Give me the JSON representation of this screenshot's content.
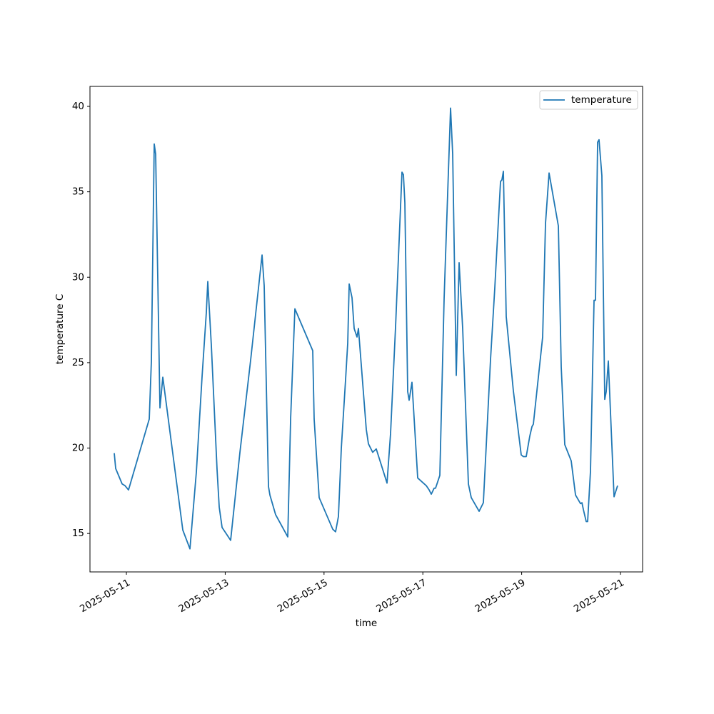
{
  "chart_data": {
    "type": "line",
    "x_label": "time",
    "y_label": "temperature C",
    "x": [
      "2025-05-10T18:06",
      "2025-05-10T18:48",
      "2025-05-10T21:55",
      "2025-05-10T23:19",
      "2025-05-11T01:02",
      "2025-05-11T11:06",
      "2025-05-11T12:08",
      "2025-05-11T13:31",
      "2025-05-11T14:13",
      "2025-05-11T16:18",
      "2025-05-11T17:41",
      "2025-05-12T03:24",
      "2025-05-12T06:52",
      "2025-05-12T09:59",
      "2025-05-12T12:46",
      "2025-05-12T14:50",
      "2025-05-12T15:32",
      "2025-05-12T17:16",
      "2025-05-12T20:02",
      "2025-05-12T21:05",
      "2025-05-12T22:29",
      "2025-05-13T02:38",
      "2025-05-13T07:09",
      "2025-05-13T12:21",
      "2025-05-13T17:54",
      "2025-05-13T18:56",
      "2025-05-13T21:01",
      "2025-05-13T21:43",
      "2025-05-14T00:29",
      "2025-05-14T06:23",
      "2025-05-14T07:47",
      "2025-05-14T09:51",
      "2025-05-14T18:31",
      "2025-05-14T19:12",
      "2025-05-14T20:36",
      "2025-05-14T21:38",
      "2025-05-15T04:14",
      "2025-05-15T05:37",
      "2025-05-15T07:00",
      "2025-05-15T08:24",
      "2025-05-15T10:28",
      "2025-05-15T11:31",
      "2025-05-15T12:13",
      "2025-05-15T13:36",
      "2025-05-15T14:38",
      "2025-05-15T16:01",
      "2025-05-15T16:43",
      "2025-05-15T20:31",
      "2025-05-15T21:34",
      "2025-05-15T23:38",
      "2025-05-16T01:22",
      "2025-05-16T06:36",
      "2025-05-16T08:19",
      "2025-05-16T10:45",
      "2025-05-16T13:52",
      "2025-05-16T14:34",
      "2025-05-16T15:16",
      "2025-05-16T16:39",
      "2025-05-16T17:21",
      "2025-05-16T18:43",
      "2025-05-16T21:30",
      "2025-05-17T01:39",
      "2025-05-17T03:03",
      "2025-05-17T04:06",
      "2025-05-17T05:29",
      "2025-05-17T06:10",
      "2025-05-17T08:15",
      "2025-05-17T10:20",
      "2025-05-17T13:28",
      "2025-05-17T14:30",
      "2025-05-17T16:14",
      "2025-05-17T17:37",
      "2025-05-17T19:21",
      "2025-05-17T22:08",
      "2025-05-17T23:31",
      "2025-05-18T03:20",
      "2025-05-18T05:24",
      "2025-05-18T07:09",
      "2025-05-18T08:53",
      "2025-05-18T10:58",
      "2025-05-18T13:44",
      "2025-05-18T14:25",
      "2025-05-18T15:07",
      "2025-05-18T16:30",
      "2025-05-18T19:58",
      "2025-05-18T23:47",
      "2025-05-19T00:50",
      "2025-05-19T02:13",
      "2025-05-19T03:57",
      "2025-05-19T05:00",
      "2025-05-19T05:41",
      "2025-05-19T10:12",
      "2025-05-19T11:35",
      "2025-05-19T13:19",
      "2025-05-19T17:50",
      "2025-05-19T19:13",
      "2025-05-19T20:57",
      "2025-05-20T00:04",
      "2025-05-20T02:10",
      "2025-05-20T04:35",
      "2025-05-20T05:17",
      "2025-05-20T05:59",
      "2025-05-20T07:21",
      "2025-05-20T08:03",
      "2025-05-20T09:26",
      "2025-05-20T11:10",
      "2025-05-20T11:52",
      "2025-05-20T12:54",
      "2025-05-20T13:35",
      "2025-05-20T14:58",
      "2025-05-20T16:22",
      "2025-05-20T17:04",
      "2025-05-20T18:06",
      "2025-05-20T20:53",
      "2025-05-20T22:36"
    ],
    "series": [
      {
        "name": "temperature",
        "color": "#1f77b4",
        "values": [
          19.7,
          18.8,
          17.9,
          17.8,
          17.55,
          21.7,
          25.1,
          37.8,
          37.2,
          22.35,
          24.15,
          15.2,
          14.1,
          18.6,
          24.2,
          27.95,
          29.75,
          26.0,
          18.75,
          16.55,
          15.35,
          14.6,
          19.75,
          25.15,
          31.3,
          29.5,
          17.75,
          17.25,
          16.1,
          14.8,
          21.75,
          28.15,
          25.7,
          21.7,
          19.05,
          17.1,
          15.25,
          15.1,
          16.0,
          20.0,
          24.0,
          26.15,
          29.6,
          28.8,
          27.0,
          26.5,
          27.0,
          21.1,
          20.25,
          19.75,
          19.95,
          17.95,
          20.85,
          27.1,
          36.15,
          36.0,
          34.35,
          23.3,
          22.8,
          23.85,
          18.25,
          17.8,
          17.55,
          17.3,
          17.65,
          17.65,
          18.4,
          28.75,
          39.9,
          37.2,
          24.25,
          30.85,
          27.0,
          17.9,
          17.1,
          16.3,
          16.8,
          21.0,
          25.2,
          29.4,
          35.6,
          35.7,
          36.2,
          27.7,
          23.35,
          19.6,
          19.5,
          19.5,
          20.7,
          21.25,
          21.4,
          26.5,
          33.15,
          36.1,
          33.0,
          24.75,
          20.2,
          19.25,
          17.25,
          16.75,
          16.8,
          16.4,
          15.7,
          15.7,
          18.65,
          28.65,
          28.65,
          37.9,
          38.05,
          35.95,
          22.85,
          23.3,
          25.1,
          17.15,
          17.8
        ]
      }
    ],
    "xlim": [
      "2025-05-10T06:18",
      "2025-05-21T10:45"
    ],
    "xticks": [
      "2025-05-11",
      "2025-05-13",
      "2025-05-15",
      "2025-05-17",
      "2025-05-19",
      "2025-05-21"
    ],
    "ylim": [
      12.75,
      41.17
    ],
    "yticks": [
      15,
      20,
      25,
      30,
      35,
      40
    ],
    "grid": false,
    "legend": "upper right"
  }
}
